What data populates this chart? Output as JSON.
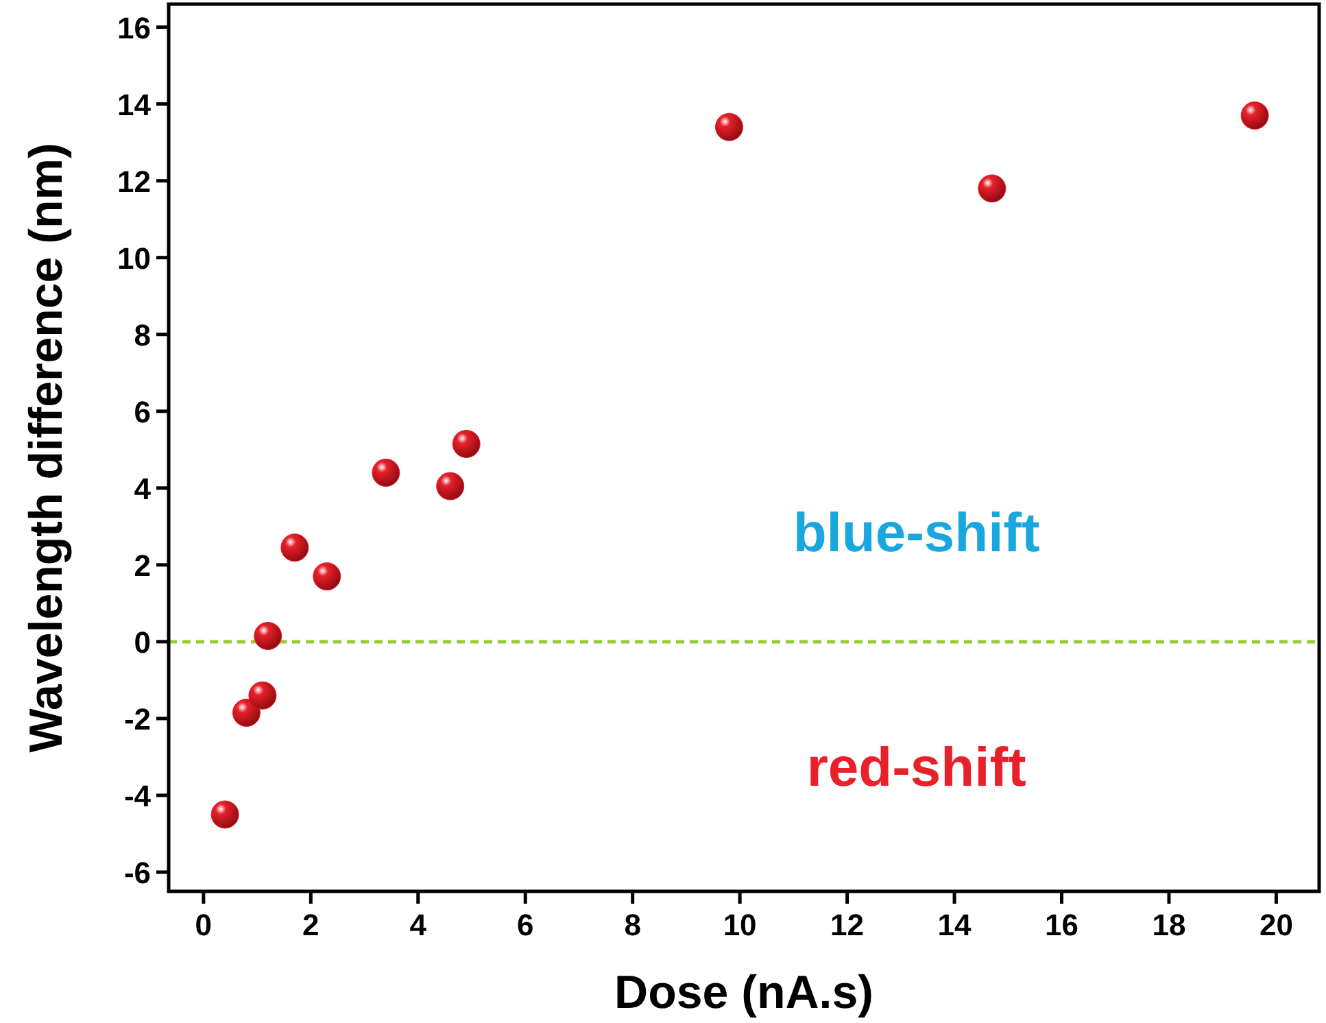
{
  "chart_data": {
    "type": "scatter",
    "xlabel": "Dose (nA.s)",
    "ylabel": "Wavelength difference (nm)",
    "x": [
      0.4,
      0.8,
      1.1,
      1.2,
      1.7,
      2.3,
      3.4,
      4.6,
      4.9,
      9.8,
      14.7,
      19.6
    ],
    "series": [
      {
        "color": "#e8202a",
        "values": [
          -4.5,
          -1.85,
          -1.4,
          0.15,
          2.45,
          1.7,
          4.4,
          4.05,
          5.15,
          13.4,
          11.8,
          13.7
        ]
      }
    ],
    "xlim": [
      -0.65,
      20.8
    ],
    "xticks": [
      0,
      2,
      4,
      6,
      8,
      10,
      12,
      14,
      16,
      18,
      20
    ],
    "ylim": [
      -6.5,
      16.6
    ],
    "yticks": [
      -6,
      -4,
      -2,
      0,
      2,
      4,
      6,
      8,
      10,
      12,
      14,
      16
    ],
    "marker": "circle",
    "grid": false,
    "ref_lines": [
      {
        "axis": "y",
        "value": 0,
        "color": "#99cc33",
        "line_style": "dashed"
      }
    ],
    "annotations": [
      "blue-shift",
      "red-shift"
    ]
  }
}
